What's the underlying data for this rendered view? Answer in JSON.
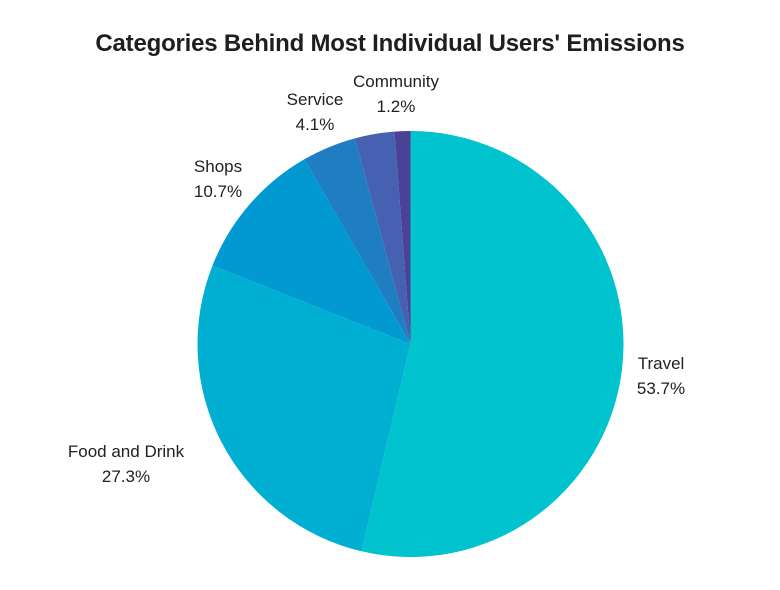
{
  "title": "Categories Behind Most Individual Users' Emissions",
  "chart_data": {
    "type": "pie",
    "title": "Categories Behind Most Individual Users' Emissions",
    "direction": "clockwise",
    "start_angle_deg": 0,
    "background_color": "#ffffff",
    "label_text_color": "#212121",
    "title_text_color": "#1e1e1e",
    "legend": "none (direct slice labels)",
    "slices": [
      {
        "label": "Travel",
        "value": 53.7,
        "pct_label": "53.7%",
        "color": "#00C3CD"
      },
      {
        "label": "Food and Drink",
        "value": 27.3,
        "pct_label": "27.3%",
        "color": "#00AFD1"
      },
      {
        "label": "Shops",
        "value": 10.7,
        "pct_label": "10.7%",
        "color": "#0099D1"
      },
      {
        "label": "Service",
        "value": 4.1,
        "pct_label": "4.1%",
        "color": "#1F7DC2"
      },
      {
        "label": "",
        "value": 3.0,
        "pct_label": "",
        "color": "#4660B2"
      },
      {
        "label": "Community",
        "value": 1.2,
        "pct_label": "1.2%",
        "color": "#4B4297"
      }
    ]
  }
}
